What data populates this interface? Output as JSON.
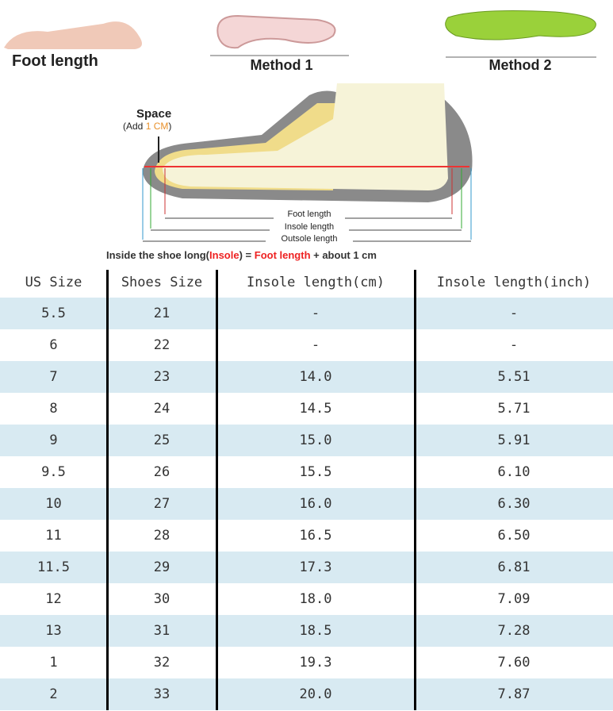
{
  "header": {
    "foot_length": "Foot length",
    "method_1": "Method 1",
    "method_2": "Method 2"
  },
  "diagram": {
    "space": "Space",
    "add_open": "(Add ",
    "add_value": "1 CM",
    "add_close": ")",
    "foot_length": "Foot length",
    "insole_length": "Insole length",
    "outsole_length": "Outsole length",
    "caption": [
      "Inside the shoe long(",
      "Insole",
      ") = ",
      "Foot length",
      " + about 1 cm"
    ]
  },
  "table": {
    "columns": [
      "US Size",
      "Shoes Size",
      "Insole length(cm)",
      "Insole length(inch)"
    ],
    "rows": [
      [
        "5.5",
        "21",
        "-",
        "-"
      ],
      [
        "6",
        "22",
        "-",
        "-"
      ],
      [
        "7",
        "23",
        "14.0",
        "5.51"
      ],
      [
        "8",
        "24",
        "14.5",
        "5.71"
      ],
      [
        "9",
        "25",
        "15.0",
        "5.91"
      ],
      [
        "9.5",
        "26",
        "15.5",
        "6.10"
      ],
      [
        "10",
        "27",
        "16.0",
        "6.30"
      ],
      [
        "11",
        "28",
        "16.5",
        "6.50"
      ],
      [
        "11.5",
        "29",
        "17.3",
        "6.81"
      ],
      [
        "12",
        "30",
        "18.0",
        "7.09"
      ],
      [
        "13",
        "31",
        "18.5",
        "7.28"
      ],
      [
        "1",
        "32",
        "19.3",
        "7.60"
      ],
      [
        "2",
        "33",
        "20.0",
        "7.87"
      ]
    ]
  }
}
